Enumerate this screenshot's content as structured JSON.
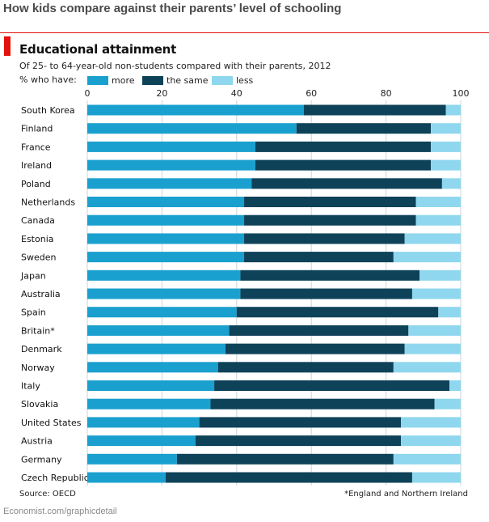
{
  "page": {
    "heading": "How kids compare against their parents’ level of schooling",
    "credit": "Economist.com/graphicdetail"
  },
  "colors": {
    "more": "#1aa0cf",
    "same": "#0e4259",
    "less": "#8fd7ee",
    "accent": "#e3120b"
  },
  "chart_data": {
    "type": "bar",
    "orientation": "horizontal",
    "stacked": true,
    "title": "Educational attainment",
    "subtitle": "Of 25- to 64-year-old non-students compared with their parents, 2012",
    "legend_label": "% who have:",
    "legend_placement": "top",
    "xlim": [
      0,
      100
    ],
    "x_ticks": [
      "0",
      "20",
      "40",
      "60",
      "80",
      "100"
    ],
    "grid": true,
    "categories": [
      "South Korea",
      "Finland",
      "France",
      "Ireland",
      "Poland",
      "Netherlands",
      "Canada",
      "Estonia",
      "Sweden",
      "Japan",
      "Australia",
      "Spain",
      "Britain*",
      "Denmark",
      "Norway",
      "Italy",
      "Slovakia",
      "United States",
      "Austria",
      "Germany",
      "Czech Republic"
    ],
    "series": [
      {
        "name": "more",
        "values": [
          58,
          56,
          45,
          45,
          44,
          42,
          42,
          42,
          42,
          41,
          41,
          40,
          38,
          37,
          35,
          34,
          33,
          30,
          29,
          24,
          21
        ]
      },
      {
        "name": "the same",
        "values": [
          38,
          36,
          47,
          47,
          51,
          46,
          46,
          43,
          40,
          48,
          46,
          54,
          48,
          48,
          47,
          63,
          60,
          54,
          55,
          58,
          66
        ]
      },
      {
        "name": "less",
        "values": [
          4,
          8,
          8,
          8,
          5,
          12,
          12,
          15,
          18,
          11,
          13,
          6,
          14,
          15,
          18,
          3,
          7,
          16,
          16,
          18,
          13
        ]
      }
    ],
    "source": "Source: OECD",
    "footnote": "*England and Northern Ireland"
  }
}
